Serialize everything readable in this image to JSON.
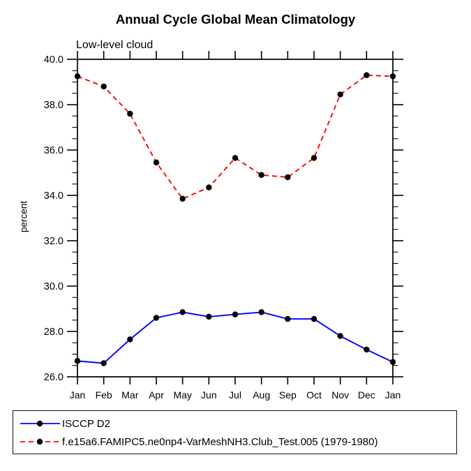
{
  "header": {
    "title": "Annual Cycle Global Mean Climatology",
    "subtitle": "Low-level cloud"
  },
  "axes": {
    "ylabel": "percent"
  },
  "chart_data": {
    "type": "line",
    "title": "Annual Cycle Global Mean Climatology",
    "subtitle": "Low-level cloud",
    "xlabel": "",
    "ylabel": "percent",
    "categories": [
      "Jan",
      "Feb",
      "Mar",
      "Apr",
      "May",
      "Jun",
      "Jul",
      "Aug",
      "Sep",
      "Oct",
      "Nov",
      "Dec",
      "Jan"
    ],
    "ylim": [
      26.0,
      40.0
    ],
    "ytick_labels": [
      "26.0",
      "28.0",
      "30.0",
      "32.0",
      "34.0",
      "36.0",
      "38.0",
      "40.0"
    ],
    "ytick_step": 2.0,
    "yminor_step": 0.5,
    "grid": false,
    "legend_position": "bottom-left-box",
    "marker_color": "#000000",
    "axis_color": "#000000",
    "series": [
      {
        "name": "ISCCP D2",
        "color": "#0000ff",
        "line_style": "solid",
        "marker": "filled-circle",
        "values": [
          26.7,
          26.6,
          27.65,
          28.6,
          28.85,
          28.65,
          28.75,
          28.85,
          28.55,
          28.55,
          27.8,
          27.2,
          26.65
        ]
      },
      {
        "name": "f.e15a6.FAMIPC5.ne0np4-VarMeshNH3.Club_Test.005 (1979-1980)",
        "color": "#ff0000",
        "line_style": "dashed",
        "marker": "filled-circle",
        "values": [
          39.25,
          38.8,
          37.6,
          35.45,
          33.85,
          34.35,
          35.65,
          34.9,
          34.8,
          35.65,
          38.45,
          39.3,
          39.25
        ]
      }
    ]
  }
}
